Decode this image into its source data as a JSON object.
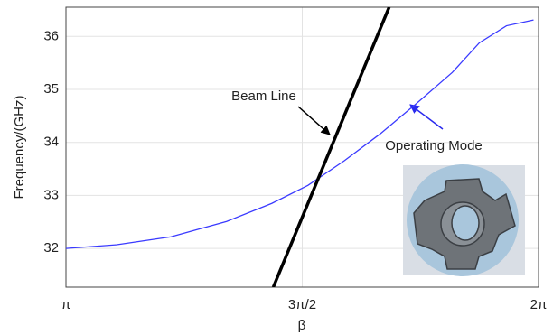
{
  "chart_data": {
    "type": "line",
    "xlabel": "β",
    "ylabel": "Frequency/(GHz)",
    "xlim": [
      3.1416,
      6.2832
    ],
    "xticks": [
      {
        "value": 3.1416,
        "label": "π"
      },
      {
        "value": 4.7124,
        "label": "3π/2"
      },
      {
        "value": 6.2832,
        "label": "2π"
      }
    ],
    "ylim": [
      31.27,
      36.55
    ],
    "yticks": [
      32,
      33,
      34,
      35,
      36
    ],
    "grid": true,
    "series": [
      {
        "color": "#3a3aff",
        "x": [
          3.14,
          3.48,
          3.84,
          4.21,
          4.51,
          4.75,
          4.99,
          5.23,
          5.47,
          5.71,
          5.89,
          6.07,
          6.25
        ],
        "values": [
          32.0,
          32.07,
          32.22,
          32.51,
          32.85,
          33.19,
          33.65,
          34.16,
          34.73,
          35.32,
          35.88,
          36.2,
          36.31
        ]
      },
      {
        "color": "#000000",
        "x": [
          4.52,
          5.29
        ],
        "values": [
          31.27,
          36.55
        ]
      }
    ],
    "annotations": [
      {
        "text": "Beam Line"
      },
      {
        "text": "Operating Mode"
      }
    ]
  }
}
